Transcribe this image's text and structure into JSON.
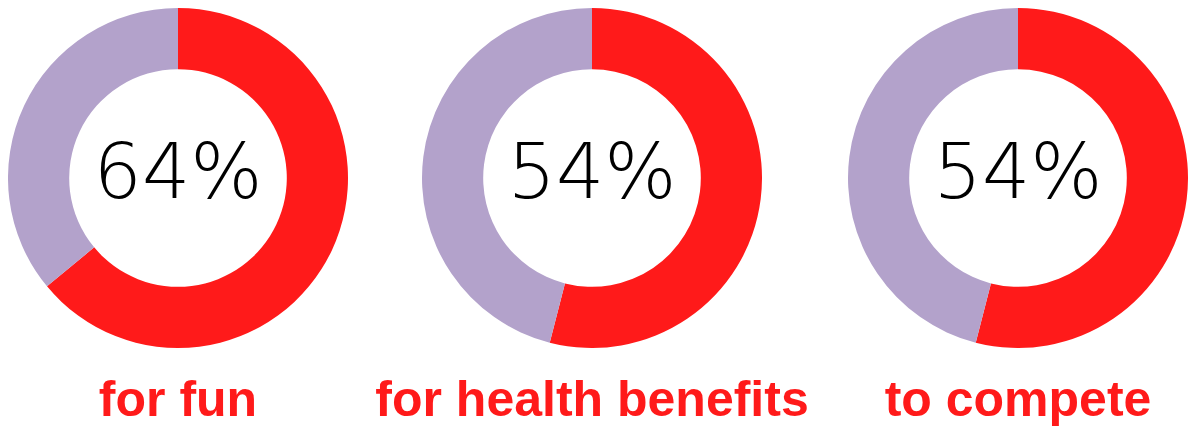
{
  "chart_data": [
    {
      "type": "donut",
      "title": "for fun",
      "categories": [
        null,
        null
      ],
      "values": [
        64,
        36
      ],
      "colors": [
        "#ff1a1a",
        "#b3a2cb"
      ],
      "value_labels": [
        "64%",
        null
      ]
    },
    {
      "type": "donut",
      "title": "for health benefits",
      "categories": [
        null,
        null
      ],
      "values": [
        54,
        46
      ],
      "colors": [
        "#ff1a1a",
        "#b3a2cb"
      ],
      "value_labels": [
        "54%",
        null
      ]
    },
    {
      "type": "donut",
      "title": "to compete",
      "categories": [
        null,
        null
      ],
      "values": [
        54,
        46
      ],
      "colors": [
        "#ff1a1a",
        "#b3a2cb"
      ],
      "value_labels": [
        "54%",
        null
      ]
    }
  ]
}
